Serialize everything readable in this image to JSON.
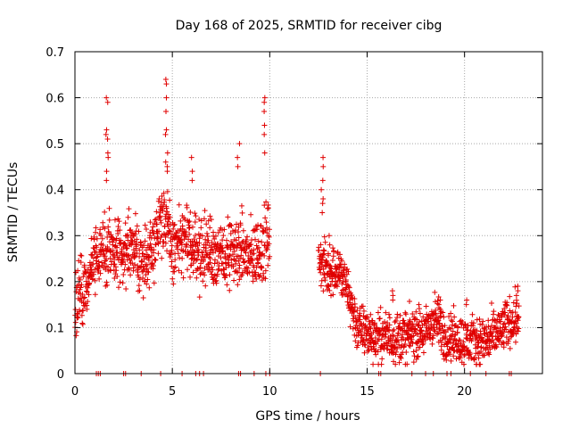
{
  "chart_data": {
    "type": "scatter",
    "title": "Day 168 of 2025, SRMTID for receiver cibg",
    "xlabel": "GPS time / hours",
    "ylabel": "SRMTID / TECUs",
    "xlim": [
      0,
      24
    ],
    "ylim": [
      0,
      0.7
    ],
    "xticks": [
      0,
      5,
      10,
      15,
      20
    ],
    "xtick_labels": [
      "0",
      "5",
      "10",
      "15",
      "20"
    ],
    "yticks": [
      0,
      0.1,
      0.2,
      0.3,
      0.4,
      0.5,
      0.6,
      0.7
    ],
    "ytick_labels": [
      "0",
      "0.1",
      "0.2",
      "0.3",
      "0.4",
      "0.5",
      "0.6",
      "0.7"
    ],
    "grid": true,
    "marker": "+",
    "series": [
      {
        "name": "SRMTID",
        "color": "#e00000",
        "segments": [
          {
            "x_start": 0.0,
            "x_end": 10.0,
            "profile": [
              [
                0.0,
                0.15
              ],
              [
                0.5,
                0.18
              ],
              [
                1.0,
                0.25
              ],
              [
                1.5,
                0.27
              ],
              [
                2.0,
                0.26
              ],
              [
                2.5,
                0.27
              ],
              [
                3.0,
                0.27
              ],
              [
                3.5,
                0.24
              ],
              [
                4.0,
                0.28
              ],
              [
                4.5,
                0.35
              ],
              [
                5.0,
                0.27
              ],
              [
                5.5,
                0.29
              ],
              [
                6.0,
                0.28
              ],
              [
                6.5,
                0.26
              ],
              [
                7.0,
                0.27
              ],
              [
                7.5,
                0.25
              ],
              [
                8.0,
                0.26
              ],
              [
                8.5,
                0.27
              ],
              [
                9.0,
                0.25
              ],
              [
                9.5,
                0.27
              ],
              [
                10.0,
                0.3
              ]
            ],
            "spread": 0.07,
            "peaks": [
              {
                "x": 1.65,
                "values": [
                  0.6,
                  0.59,
                  0.53,
                  0.52,
                  0.51,
                  0.48,
                  0.47,
                  0.44,
                  0.42
                ]
              },
              {
                "x": 4.7,
                "values": [
                  0.64,
                  0.63,
                  0.6,
                  0.57,
                  0.53,
                  0.52,
                  0.48,
                  0.46,
                  0.45,
                  0.44
                ]
              },
              {
                "x": 9.7,
                "values": [
                  0.6,
                  0.59,
                  0.57,
                  0.54,
                  0.52,
                  0.48
                ]
              },
              {
                "x": 8.4,
                "values": [
                  0.5,
                  0.47,
                  0.45
                ]
              },
              {
                "x": 6.0,
                "values": [
                  0.47,
                  0.44,
                  0.42
                ]
              }
            ]
          },
          {
            "x_start": 12.5,
            "x_end": 22.8,
            "profile": [
              [
                12.5,
                0.25
              ],
              [
                13.0,
                0.22
              ],
              [
                13.5,
                0.23
              ],
              [
                14.0,
                0.18
              ],
              [
                14.5,
                0.1
              ],
              [
                15.0,
                0.09
              ],
              [
                15.5,
                0.08
              ],
              [
                16.0,
                0.08
              ],
              [
                16.5,
                0.08
              ],
              [
                17.0,
                0.08
              ],
              [
                17.5,
                0.09
              ],
              [
                18.0,
                0.09
              ],
              [
                18.5,
                0.12
              ],
              [
                19.0,
                0.08
              ],
              [
                19.5,
                0.08
              ],
              [
                20.0,
                0.07
              ],
              [
                20.5,
                0.07
              ],
              [
                21.0,
                0.07
              ],
              [
                21.5,
                0.08
              ],
              [
                22.0,
                0.1
              ],
              [
                22.8,
                0.13
              ]
            ],
            "spread": 0.05,
            "peaks": [
              {
                "x": 12.7,
                "values": [
                  0.47,
                  0.45,
                  0.42,
                  0.4,
                  0.38,
                  0.37,
                  0.35
                ]
              },
              {
                "x": 13.1,
                "values": [
                  0.3,
                  0.28
                ]
              },
              {
                "x": 16.3,
                "values": [
                  0.18,
                  0.17,
                  0.16
                ]
              },
              {
                "x": 18.7,
                "values": [
                  0.16,
                  0.15,
                  0.14
                ]
              },
              {
                "x": 20.1,
                "values": [
                  0.16,
                  0.15
                ]
              },
              {
                "x": 22.7,
                "values": [
                  0.19,
                  0.18,
                  0.17
                ]
              }
            ]
          }
        ],
        "zero_markers": [
          1.1,
          1.2,
          1.3,
          2.5,
          2.6,
          3.4,
          4.4,
          5.5,
          6.2,
          6.4,
          6.6,
          8.4,
          8.5,
          9.2,
          9.8,
          10.0,
          12.6,
          15.6,
          15.7,
          17.3,
          18.0,
          18.4,
          19.1,
          19.3,
          20.3,
          21.1,
          22.3,
          22.4
        ]
      }
    ]
  }
}
